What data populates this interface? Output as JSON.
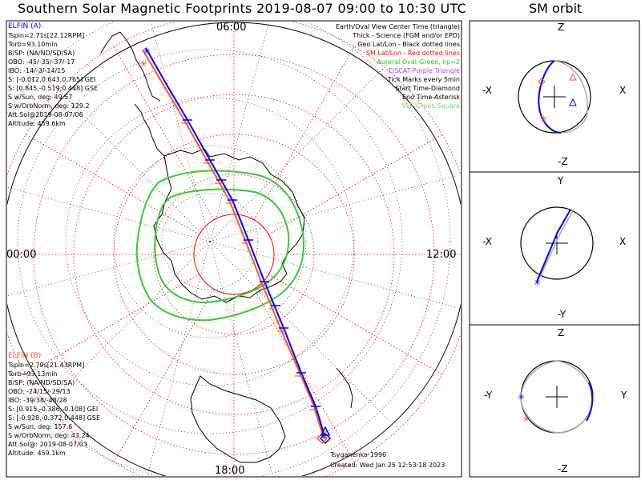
{
  "title": "Southern Solar Magnetic Footprints 2019-08-07 09:00 to 10:30 UTC",
  "sm_title": "SM orbit",
  "map": {
    "hour_labels": {
      "top": "06:00",
      "left": "00:00",
      "right": "12:00",
      "bottom": "18:00"
    }
  },
  "legend": [
    {
      "text": "Earth/Oval View Center Time (triangle)",
      "color": "#000000"
    },
    {
      "text": "Thick - Science (FGM and/or EPD)",
      "color": "#000000"
    },
    {
      "text": "Geo Lat/Lon - Black dotted lines",
      "color": "#000000"
    },
    {
      "text": "SM Lat/Lon - Red dotted lines",
      "color": "#ff0000"
    },
    {
      "text": "Auroral Oval-Green, kp=2",
      "color": "#22cc22"
    },
    {
      "text": "EISCAT-Purple Triangle",
      "color": "#b040ff"
    },
    {
      "text": "Tick Marks every 5min",
      "color": "#000000"
    },
    {
      "text": "Start Time-Diamond",
      "color": "#000000"
    },
    {
      "text": "End Time-Asterisk",
      "color": "#000000"
    },
    {
      "text": "VLF-Green Square",
      "color": "#66dd66"
    }
  ],
  "elfin_a": {
    "name": "ELFIN (A)",
    "color": "#0000ff",
    "lines": [
      "Tspin=2.71s[22.12RPM]",
      "Torb=93.10min",
      "B/SP: (NA/ND/SD/SA)",
      "OBO: -45/-35/-37/-17",
      "IBO: -14/-3/-14/15",
      "S: [-0.012,0.643,0.765] GEI",
      "S: [0.845,-0.519,0.448] GSE",
      "S w/Sun, deg: 49.57",
      "S w/OrbNorm, deg: 129.2",
      "Att.Sol@2019-08-07/06",
      "Altitude: 459.6km"
    ]
  },
  "elfin_b": {
    "name": "ELFIN (B)",
    "color": "#ff5522",
    "lines": [
      "Tspin=2.79s[21.43RPM]",
      "Torb=93.13min",
      "B/SP: (NA/ND/SD/SA)",
      "OBO: -24/15/-29/13",
      "IBO: -39/38/-48/28",
      "S: [0.915,-0.386,-0.108] GEI",
      "S: [-0.928,-0.372,0.448] GSE",
      "S w/Sun, deg: 157.6",
      "S w/OrbNorm, deg: 43.24",
      "Att.Sol@: 2019-08-07/03",
      "Altitude: 459.1km"
    ]
  },
  "footer": {
    "model": "Tsyganenko-1996",
    "created": "Created: Wed Jan 25 12:53:18 2023"
  },
  "sm_panels": [
    {
      "top": "Z",
      "bottom": "-Z",
      "left": "-X",
      "right": "X"
    },
    {
      "top": "Y",
      "bottom": "-Y",
      "left": "-X",
      "right": "X"
    },
    {
      "top": "Z",
      "bottom": "-Z",
      "left": "-Y",
      "right": "Y"
    }
  ],
  "colors": {
    "elfin_a": "#0000ff",
    "elfin_b": "#ff5522",
    "sm_grid": "#ff0000",
    "oval": "#33cc33",
    "orbit_gray": "#aaaaaa"
  }
}
